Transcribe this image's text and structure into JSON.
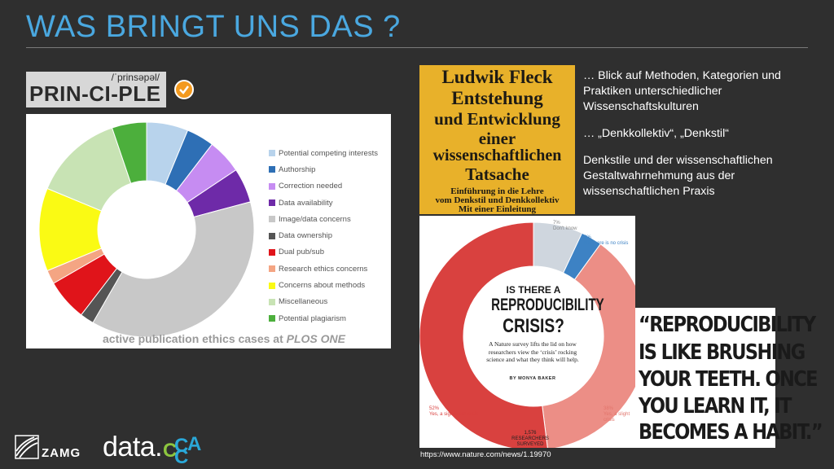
{
  "slide": {
    "title": "WAS BRINGT UNS DAS ?",
    "principle": {
      "word": "PRIN-CI-PLE",
      "phonetic": "/ˈprinsəpəl/"
    },
    "pie_caption": {
      "text": "active publication ethics cases at",
      "journal": "PLOS ONE"
    },
    "book": {
      "lines": [
        "Ludwik Fleck",
        "Entstehung",
        "und Entwicklung",
        "einer",
        "wissenschaftlichen",
        "Tatsache"
      ],
      "subtitle": [
        "Einführung in die Lehre",
        "vom Denkstil und Denkkollektiv",
        "Mit einer Einleitung"
      ]
    },
    "bullets": [
      "… Blick auf Methoden, Kategorien und Praktiken unterschiedlicher Wissenschaftskulturen",
      "… „Denkkollektiv“, „Denkstil“",
      "Denkstile und der wissenschaftlichen Gestaltwahrnehmung aus der wissenschaftlichen Praxis"
    ],
    "nature": {
      "q1": "IS THERE A",
      "q2": "REPRODUCIBILITY",
      "q3": "CRISIS?",
      "body": "A Nature survey lifts the lid on how researchers view the ‘crisis’ rocking science and what they think will help.",
      "by": "BY MONYA BAKER",
      "labels": {
        "dont_know": {
          "pct": "7%",
          "text": "Don't know"
        },
        "no": {
          "pct": "3%",
          "text": "No, there is no crisis"
        },
        "significant": {
          "pct": "52%",
          "text": "Yes, a significant crisis"
        },
        "slight": {
          "pct": "38%",
          "text": "Yes, a slight crisis"
        },
        "surveyed": {
          "count": "1,576",
          "text": "RESEARCHERS SURVEYED"
        }
      }
    },
    "quote": [
      "“REPRODUCIBILITY",
      "IS LIKE BRUSHING",
      "YOUR TEETH. ONCE",
      "YOU LEARN IT, IT",
      "BECOMES A HABIT.”"
    ],
    "link": "https://www.nature.com/news/1.19970",
    "logos": {
      "zamg": "ZAMG",
      "data": "data.",
      "ccca": [
        "C",
        "C",
        "C",
        "A"
      ]
    }
  },
  "chart_data": [
    {
      "type": "pie",
      "legend_placement": "right",
      "categories": [
        "Potential competing interests",
        "Authorship",
        "Correction needed",
        "Data availability",
        "Image/data concerns",
        "Data ownership",
        "Dual pub/sub",
        "Research ethics concerns",
        "Concerns about methods",
        "Miscellaneous",
        "Potential plagiarism"
      ],
      "values": [
        6,
        4,
        5,
        5,
        36,
        2,
        6,
        2,
        12,
        13,
        5
      ],
      "colors": [
        "#b8d3ec",
        "#2e6fb5",
        "#c68cf2",
        "#6e2aa8",
        "#c8c8c8",
        "#555555",
        "#e0141a",
        "#f4a583",
        "#fafa14",
        "#c8e3b4",
        "#4caf3c"
      ]
    },
    {
      "type": "pie",
      "categories": [
        "Don't know",
        "No, there is no crisis",
        "Yes, a slight crisis",
        "Yes, a significant crisis"
      ],
      "values": [
        7,
        3,
        38,
        52
      ],
      "colors": [
        "#cfd6de",
        "#3d82c4",
        "#ec8e86",
        "#d9413f"
      ]
    }
  ]
}
